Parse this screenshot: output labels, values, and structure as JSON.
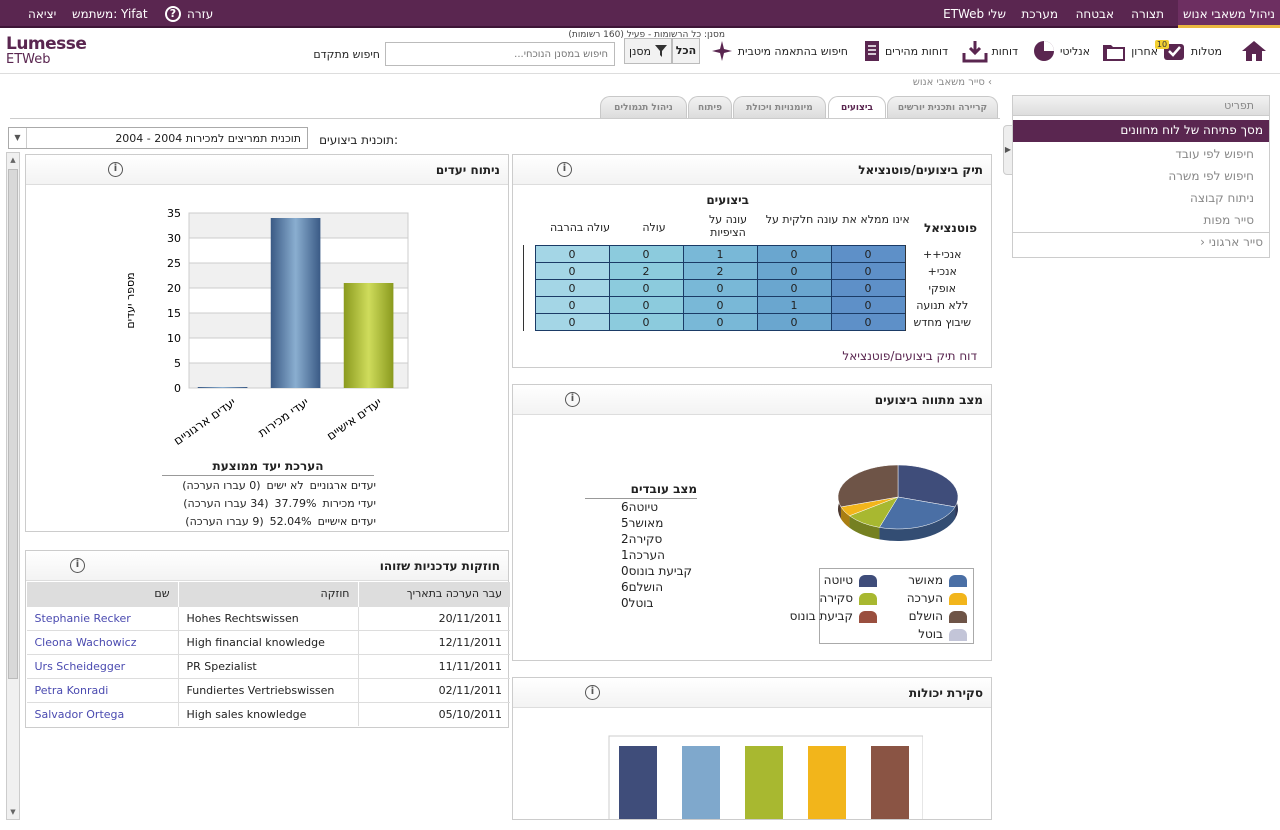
{
  "topnav": {
    "items": [
      "ניהול משאבי אנוש",
      "תצורה",
      "אבטחה",
      "מערכת",
      "ETWeb שלי"
    ],
    "logout": "יציאה",
    "user_label": "משתמש: Yifat",
    "help": "עזרה"
  },
  "logo": {
    "brand": "Lumesse",
    "product": "ETWeb"
  },
  "toolbar": {
    "home": "",
    "tasks": "מטלות",
    "tasks_badge": "10",
    "recent": "אחרון",
    "analytics": "אנליטי",
    "reports": "דוחות",
    "quick_reports": "דוחות מהירים",
    "best_match": "חיפוש בהתאמה מיטבית",
    "all": "הכל",
    "filter": "מסנן",
    "filter_info": "מסנן: כל הרשומות - פעיל (160 רשומות)",
    "search_placeholder": "חיפוש במסנן הנוכחי...",
    "advanced_search": "חיפוש מתקדם"
  },
  "breadcrumb": "סייר משאבי אנוש",
  "sidebar": {
    "title": "תפריט",
    "items": [
      "מסך פתיחה של לוח מחוונים",
      "חיפוש לפי עובד",
      "חיפוש לפי משרה",
      "ניתוח קבוצה",
      "סייר מפות",
      "סייר ארגוני"
    ]
  },
  "tabs": [
    "קריירה ותכנית יורשים",
    "ביצועים",
    "מיומנויות ויכולת",
    "פיתוח",
    "ניהול תגמולים"
  ],
  "plan": {
    "label": "תוכנית ביצועים:",
    "value": "2004 - תוכנית תמריצים למכירות 2004"
  },
  "talent": {
    "title": "תיק ביצועים/פוטנציאל",
    "perf_header": "ביצועים",
    "pot_header": "פוטנציאל",
    "cols": [
      "אינו ממלא את",
      "עונה חלקית על",
      "עונה על הציפיות",
      "עולה",
      "עולה בהרבה"
    ],
    "rows": [
      {
        "label": "אנכי++",
        "v": [
          0,
          0,
          1,
          0,
          0
        ]
      },
      {
        "label": "אנכי+",
        "v": [
          0,
          0,
          2,
          2,
          0
        ]
      },
      {
        "label": "אופקי",
        "v": [
          0,
          0,
          0,
          0,
          0
        ]
      },
      {
        "label": "ללא תנועה",
        "v": [
          0,
          1,
          0,
          0,
          0
        ]
      },
      {
        "label": "שיבוץ מחדש",
        "v": [
          0,
          0,
          0,
          0,
          0
        ]
      }
    ],
    "link": "דוח תיק ביצועים/פוטנציאל"
  },
  "goals": {
    "title": "ניתוח יעדים",
    "ylabel": "מספר יעדים",
    "table_title": "הערכת יעד ממוצעת",
    "rows": [
      {
        "name": "יעדים ארגוניים",
        "pct": "לא ישים",
        "count": "(0 עברו הערכה)"
      },
      {
        "name": "יעדי מכירות",
        "pct": "37.79%",
        "count": "(34 עברו הערכה)"
      },
      {
        "name": "יעדים אישיים",
        "pct": "52.04%",
        "count": "(9 עברו הערכה)"
      }
    ]
  },
  "status": {
    "title": "מצב מתווה ביצועים",
    "list_title": "מצב עובדים",
    "items": [
      {
        "label": "טיוטה",
        "n": "6"
      },
      {
        "label": "מאושר",
        "n": "5"
      },
      {
        "label": "סקירה",
        "n": "2"
      },
      {
        "label": "הערכה",
        "n": "1"
      },
      {
        "label": "קביעת בונוס",
        "n": "0"
      },
      {
        "label": "הושלם",
        "n": "6"
      },
      {
        "label": "בוטל",
        "n": "0"
      }
    ],
    "legend": [
      {
        "label": "מאושר",
        "color": "#4a6fa5"
      },
      {
        "label": "טיוטה",
        "color": "#3f4d7a"
      },
      {
        "label": "הערכה",
        "color": "#f2b51b"
      },
      {
        "label": "סקירה",
        "color": "#a8b830"
      },
      {
        "label": "הושלם",
        "color": "#6e5447"
      },
      {
        "label": "קביעת בונוס",
        "color": "#9a4f3f"
      },
      {
        "label": "בוטל",
        "color": "#c3c5d8"
      }
    ]
  },
  "strengths": {
    "title": "חוזקות עדכניות שזוהו",
    "headers": [
      "עבר הערכה בתאריך",
      "חוזקה",
      "שם"
    ],
    "rows": [
      {
        "date": "20/11/2011",
        "strength": "Hohes Rechtswissen",
        "name": "Stephanie Recker"
      },
      {
        "date": "12/11/2011",
        "strength": "High financial knowledge",
        "name": "Cleona Wachowicz"
      },
      {
        "date": "11/11/2011",
        "strength": "PR Spezialist",
        "name": "Urs Scheidegger"
      },
      {
        "date": "02/11/2011",
        "strength": "Fundiertes Vertriebswissen",
        "name": "Petra Konradi"
      },
      {
        "date": "05/10/2011",
        "strength": "High sales knowledge",
        "name": "Salvador Ortega"
      }
    ]
  },
  "skills": {
    "title": "סקירת יכולות"
  },
  "chart_data": [
    {
      "type": "bar",
      "categories": [
        "יעדים ארגוניים",
        "יעדי מכירות",
        "יעדים אישיים"
      ],
      "values": [
        0,
        34,
        21
      ],
      "ylabel": "מספר יעדים",
      "ylim": [
        0,
        35
      ],
      "colors": [
        "#5b7fa8",
        "#5b7fa8",
        "#a8b830"
      ]
    },
    {
      "type": "pie",
      "labels": [
        "טיוטה",
        "מאושר",
        "סקירה",
        "הערכה",
        "קביעת בונוס",
        "הושלם",
        "בוטל"
      ],
      "values": [
        6,
        5,
        2,
        1,
        0,
        6,
        0
      ],
      "colors": [
        "#3f4d7a",
        "#4a6fa5",
        "#a8b830",
        "#f2b51b",
        "#9a4f3f",
        "#6e5447",
        "#c3c5d8"
      ]
    }
  ]
}
